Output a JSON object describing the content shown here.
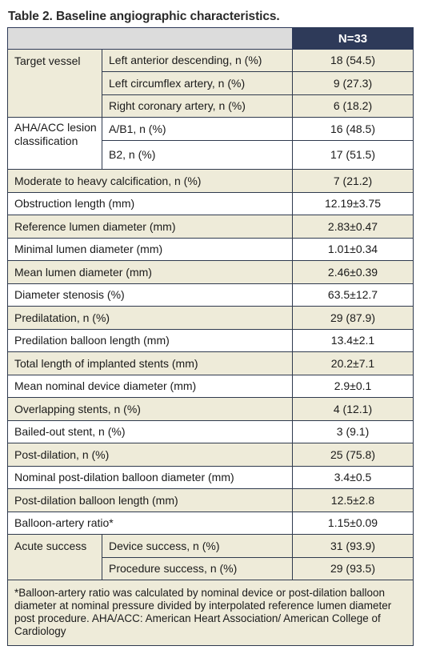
{
  "caption": "Table 2. Baseline angiographic characteristics.",
  "header": {
    "col_value": "N=33"
  },
  "groups": {
    "target_vessel": {
      "label": "Target vessel",
      "rows": [
        {
          "label": "Left anterior descending, n (%)",
          "value": "18 (54.5)"
        },
        {
          "label": "Left circumflex artery, n (%)",
          "value": "9 (27.3)"
        },
        {
          "label": "Right coronary artery, n (%)",
          "value": "6 (18.2)"
        }
      ]
    },
    "aha_acc": {
      "label": "AHA/ACC lesion classification",
      "rows": [
        {
          "label": "A/B1, n (%)",
          "value": "16 (48.5)"
        },
        {
          "label": "B2, n (%)",
          "value": "17 (51.5)"
        }
      ]
    },
    "acute_success": {
      "label": "Acute success",
      "rows": [
        {
          "label": "Device success, n (%)",
          "value": "31 (93.9)"
        },
        {
          "label": "Procedure success, n (%)",
          "value": "29 (93.5)"
        }
      ]
    }
  },
  "rows": [
    {
      "label": "Moderate to heavy calcification, n (%)",
      "value": "7 (21.2)"
    },
    {
      "label": "Obstruction length (mm)",
      "value": "12.19±3.75"
    },
    {
      "label": "Reference lumen diameter (mm)",
      "value": "2.83±0.47"
    },
    {
      "label": "Minimal lumen diameter (mm)",
      "value": "1.01±0.34"
    },
    {
      "label": "Mean lumen diameter (mm)",
      "value": "2.46±0.39"
    },
    {
      "label": "Diameter stenosis (%)",
      "value": "63.5±12.7"
    },
    {
      "label": "Predilatation, n (%)",
      "value": "29 (87.9)"
    },
    {
      "label": "Predilation balloon length (mm)",
      "value": "13.4±2.1"
    },
    {
      "label": "Total length of implanted stents (mm)",
      "value": "20.2±7.1"
    },
    {
      "label": "Mean nominal device diameter (mm)",
      "value": "2.9±0.1"
    },
    {
      "label": "Overlapping stents, n (%)",
      "value": "4 (12.1)"
    },
    {
      "label": "Bailed-out stent, n (%)",
      "value": "3 (9.1)"
    },
    {
      "label": "Post-dilation, n (%)",
      "value": "25 (75.8)"
    },
    {
      "label": "Nominal post-dilation balloon diameter (mm)",
      "value": "3.4±0.5"
    },
    {
      "label": "Post-dilation balloon length (mm)",
      "value": "12.5±2.8"
    },
    {
      "label": "Balloon-artery ratio*",
      "value": "1.15±0.09"
    }
  ],
  "footnote": "*Balloon-artery ratio was calculated by nominal device or post-dilation balloon diameter at nominal pressure divided by interpolated reference lumen diameter post procedure. AHA/ACC: American Heart Association/ American College of Cardiology",
  "colors": {
    "header_bg": "#2e3a59",
    "shade_bg": "#eeebd9",
    "border": "#2f3a4e"
  }
}
